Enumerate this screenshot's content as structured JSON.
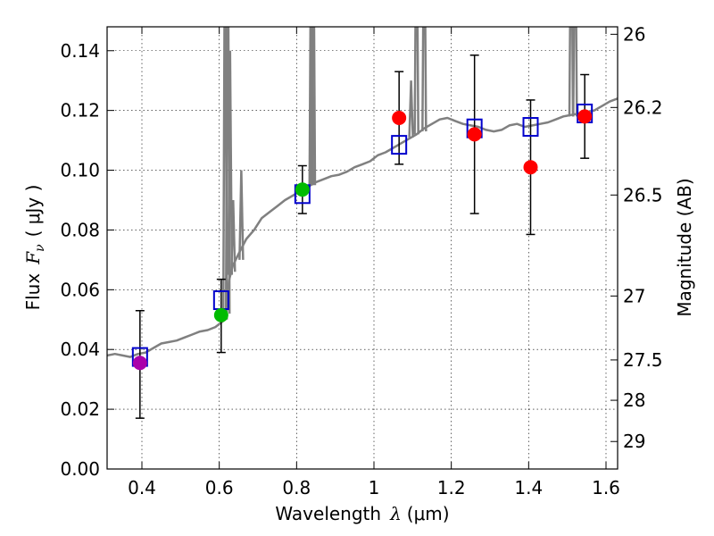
{
  "chart_data": {
    "type": "scatter",
    "xlabel": "Wavelength",
    "xlabel_symbol": "λ",
    "xlabel_unit": "(μm)",
    "ylabel": "Flux",
    "ylabel_symbol": "F",
    "ylabel_subscript": "ν",
    "ylabel_unit": "( μJy )",
    "y2label": "Magnitude (AB)",
    "xlim": [
      0.31,
      1.63
    ],
    "ylim": [
      0.0,
      0.148
    ],
    "grid": true,
    "x_ticks": [
      0.4,
      0.6,
      0.8,
      1.0,
      1.2,
      1.4,
      1.6
    ],
    "x_tick_labels": [
      "0.4",
      "0.6",
      "0.8",
      "1",
      "1.2",
      "1.4",
      "1.6"
    ],
    "y_ticks": [
      0.0,
      0.02,
      0.04,
      0.06,
      0.08,
      0.1,
      0.12,
      0.14
    ],
    "y_tick_labels": [
      "0.00",
      "0.02",
      "0.04",
      "0.06",
      "0.08",
      "0.10",
      "0.12",
      "0.14"
    ],
    "y2_ticks": [
      {
        "label": "26",
        "flux": 0.1455
      },
      {
        "label": "26.2",
        "flux": 0.121
      },
      {
        "label": "26.5",
        "flux": 0.0917
      },
      {
        "label": "27",
        "flux": 0.0579
      },
      {
        "label": "27.5",
        "flux": 0.0365
      },
      {
        "label": "28",
        "flux": 0.023
      },
      {
        "label": "29",
        "flux": 0.0092
      }
    ],
    "colors": {
      "spectrum": "#808080",
      "model_box": "#0000cc",
      "errorbar": "#000000",
      "purple": "#aa00aa",
      "green": "#00bb00",
      "red": "#ff0000"
    },
    "model_template": [
      [
        0.31,
        0.038
      ],
      [
        0.33,
        0.0385
      ],
      [
        0.35,
        0.038
      ],
      [
        0.37,
        0.0375
      ],
      [
        0.39,
        0.0385
      ],
      [
        0.41,
        0.039
      ],
      [
        0.43,
        0.0405
      ],
      [
        0.45,
        0.042
      ],
      [
        0.47,
        0.0425
      ],
      [
        0.49,
        0.043
      ],
      [
        0.51,
        0.044
      ],
      [
        0.53,
        0.045
      ],
      [
        0.55,
        0.046
      ],
      [
        0.57,
        0.0465
      ],
      [
        0.59,
        0.0475
      ],
      [
        0.61,
        0.0495
      ],
      [
        0.62,
        0.053
      ],
      [
        0.625,
        0.063
      ],
      [
        0.635,
        0.068
      ],
      [
        0.65,
        0.072
      ],
      [
        0.67,
        0.077
      ],
      [
        0.69,
        0.08
      ],
      [
        0.71,
        0.084
      ],
      [
        0.73,
        0.086
      ],
      [
        0.75,
        0.088
      ],
      [
        0.77,
        0.09
      ],
      [
        0.79,
        0.0915
      ],
      [
        0.81,
        0.093
      ],
      [
        0.83,
        0.0945
      ],
      [
        0.85,
        0.096
      ],
      [
        0.87,
        0.097
      ],
      [
        0.89,
        0.098
      ],
      [
        0.91,
        0.0985
      ],
      [
        0.93,
        0.0995
      ],
      [
        0.95,
        0.101
      ],
      [
        0.97,
        0.102
      ],
      [
        0.99,
        0.103
      ],
      [
        1.01,
        0.105
      ],
      [
        1.03,
        0.106
      ],
      [
        1.05,
        0.1075
      ],
      [
        1.07,
        0.109
      ],
      [
        1.09,
        0.1105
      ],
      [
        1.11,
        0.112
      ],
      [
        1.13,
        0.114
      ],
      [
        1.15,
        0.1155
      ],
      [
        1.17,
        0.117
      ],
      [
        1.19,
        0.1175
      ],
      [
        1.21,
        0.1165
      ],
      [
        1.23,
        0.1155
      ],
      [
        1.25,
        0.115
      ],
      [
        1.27,
        0.1145
      ],
      [
        1.29,
        0.1135
      ],
      [
        1.31,
        0.113
      ],
      [
        1.33,
        0.1135
      ],
      [
        1.35,
        0.115
      ],
      [
        1.37,
        0.1155
      ],
      [
        1.39,
        0.1145
      ],
      [
        1.41,
        0.115
      ],
      [
        1.43,
        0.1155
      ],
      [
        1.45,
        0.116
      ],
      [
        1.47,
        0.117
      ],
      [
        1.49,
        0.118
      ],
      [
        1.51,
        0.1185
      ],
      [
        1.53,
        0.119
      ],
      [
        1.55,
        0.1195
      ],
      [
        1.57,
        0.12
      ],
      [
        1.59,
        0.1215
      ],
      [
        1.61,
        0.123
      ],
      [
        1.63,
        0.124
      ]
    ],
    "emission_spikes": [
      {
        "x": 0.615,
        "base": 0.05,
        "top": 0.2
      },
      {
        "x": 0.622,
        "base": 0.052,
        "top": 0.2
      },
      {
        "x": 0.628,
        "base": 0.065,
        "top": 0.14
      },
      {
        "x": 0.636,
        "base": 0.066,
        "top": 0.09
      },
      {
        "x": 0.657,
        "base": 0.07,
        "top": 0.1
      },
      {
        "x": 0.838,
        "base": 0.095,
        "top": 0.2
      },
      {
        "x": 0.843,
        "base": 0.095,
        "top": 0.2
      },
      {
        "x": 1.096,
        "base": 0.111,
        "top": 0.13
      },
      {
        "x": 1.11,
        "base": 0.112,
        "top": 0.2
      },
      {
        "x": 1.13,
        "base": 0.113,
        "top": 0.2
      },
      {
        "x": 1.51,
        "base": 0.118,
        "top": 0.2
      },
      {
        "x": 1.52,
        "base": 0.118,
        "top": 0.2
      }
    ],
    "model_photometry": [
      {
        "x": 0.395,
        "y": 0.0375
      },
      {
        "x": 0.605,
        "y": 0.0565
      },
      {
        "x": 0.815,
        "y": 0.092
      },
      {
        "x": 1.065,
        "y": 0.1085
      },
      {
        "x": 1.26,
        "y": 0.114
      },
      {
        "x": 1.405,
        "y": 0.1145
      },
      {
        "x": 1.545,
        "y": 0.119
      }
    ],
    "observed": [
      {
        "x": 0.395,
        "y": 0.0355,
        "yerr_lo": 0.0185,
        "yerr_hi": 0.0175,
        "color": "purple"
      },
      {
        "x": 0.605,
        "y": 0.0515,
        "yerr_lo": 0.0125,
        "yerr_hi": 0.012,
        "color": "green"
      },
      {
        "x": 0.815,
        "y": 0.0935,
        "yerr_lo": 0.008,
        "yerr_hi": 0.008,
        "color": "green"
      },
      {
        "x": 1.065,
        "y": 0.1175,
        "yerr_lo": 0.0155,
        "yerr_hi": 0.0155,
        "color": "red"
      },
      {
        "x": 1.26,
        "y": 0.112,
        "yerr_lo": 0.0265,
        "yerr_hi": 0.0265,
        "color": "red"
      },
      {
        "x": 1.405,
        "y": 0.101,
        "yerr_lo": 0.0225,
        "yerr_hi": 0.0225,
        "color": "red"
      },
      {
        "x": 1.545,
        "y": 0.118,
        "yerr_lo": 0.014,
        "yerr_hi": 0.014,
        "color": "red"
      }
    ]
  }
}
